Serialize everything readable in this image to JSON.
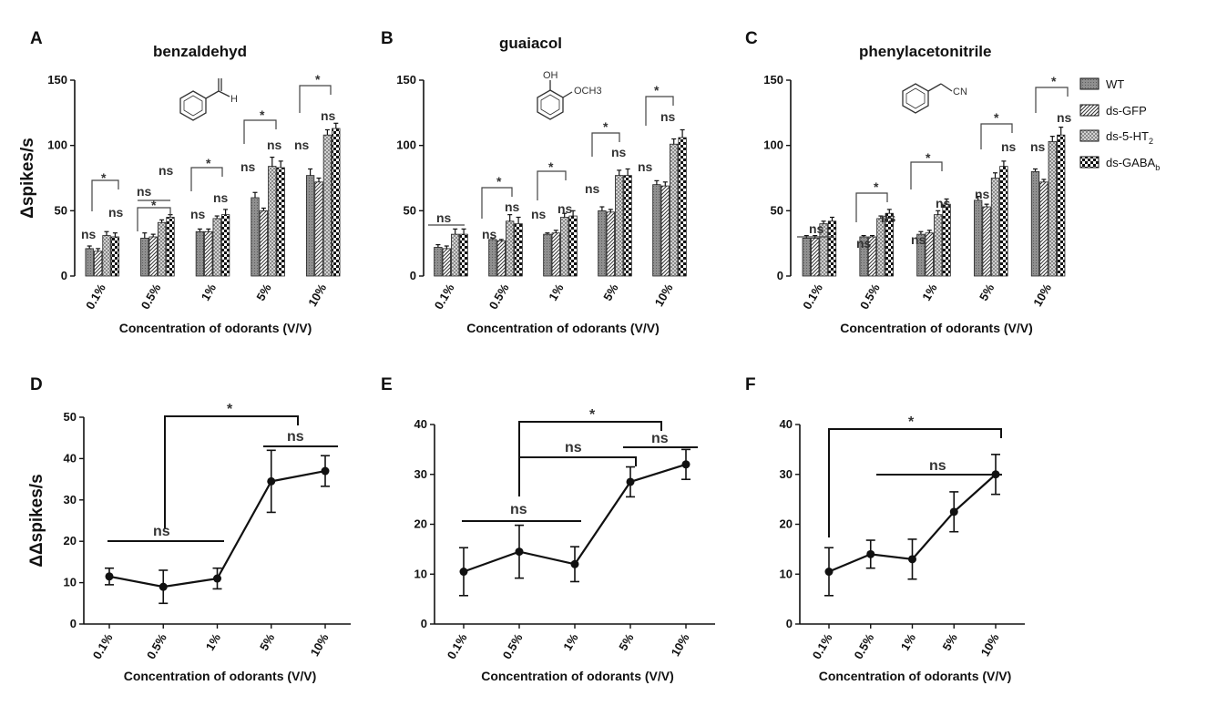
{
  "panel_letters": [
    "A",
    "B",
    "C",
    "D",
    "E",
    "F"
  ],
  "colors": {
    "ink": "#111111",
    "wt": "#8c8c8c",
    "gfp": "#ffffff",
    "ht2": "#b4b4b4",
    "gaba": "#2a2a2a"
  },
  "annotation_text": {
    "star": "*",
    "ns": "ns"
  },
  "legend": [
    {
      "key": "wt",
      "label": "WT"
    },
    {
      "key": "gfp",
      "label": "ds-GFP"
    },
    {
      "key": "ht2",
      "label": "ds-5-HT",
      "sub": "2"
    },
    {
      "key": "gaba",
      "label": "ds-GABA",
      "sub": "b"
    }
  ],
  "chem_labels": [
    "H",
    "OH",
    "OCH3",
    "CN"
  ],
  "chart_data": [
    {
      "type": "bar",
      "panel": "A",
      "title": "benzaldehyd",
      "categories": [
        "0.1%",
        "0.5%",
        "1%",
        "5%",
        "10%"
      ],
      "series": [
        {
          "name": "WT",
          "values": [
            21,
            29,
            34,
            60,
            77
          ],
          "errors": [
            2,
            4,
            2,
            4,
            5
          ]
        },
        {
          "name": "ds-GFP",
          "values": [
            19,
            30,
            34,
            50,
            72
          ],
          "errors": [
            2,
            2,
            2,
            2,
            3
          ]
        },
        {
          "name": "ds-5-HT2",
          "values": [
            31,
            41,
            44,
            84,
            108
          ],
          "errors": [
            3,
            2,
            2,
            7,
            4
          ]
        },
        {
          "name": "ds-GABAb",
          "values": [
            30,
            45,
            47,
            83,
            113
          ],
          "errors": [
            3,
            2,
            4,
            5,
            4
          ]
        }
      ],
      "xlabel": "Concentration of odorants (V/V)",
      "ylabel": "Δspikes/s",
      "ylim": [
        0,
        150
      ],
      "yticks": [
        0,
        50,
        100,
        150
      ]
    },
    {
      "type": "bar",
      "panel": "B",
      "title": "guaiacol",
      "categories": [
        "0.1%",
        "0.5%",
        "1%",
        "5%",
        "10%"
      ],
      "series": [
        {
          "name": "WT",
          "values": [
            22,
            28,
            32,
            50,
            70
          ],
          "errors": [
            2,
            1,
            1,
            3,
            3
          ]
        },
        {
          "name": "ds-GFP",
          "values": [
            21,
            27,
            33,
            49,
            69
          ],
          "errors": [
            2,
            1,
            2,
            2,
            3
          ]
        },
        {
          "name": "ds-5-HT2",
          "values": [
            32,
            42,
            45,
            77,
            101
          ],
          "errors": [
            4,
            5,
            3,
            4,
            4
          ]
        },
        {
          "name": "ds-GABAb",
          "values": [
            32,
            40,
            46,
            77,
            106
          ],
          "errors": [
            4,
            5,
            4,
            5,
            6
          ]
        }
      ],
      "xlabel": "Concentration of odorants (V/V)",
      "ylabel": "",
      "ylim": [
        0,
        150
      ],
      "yticks": [
        0,
        50,
        100,
        150
      ]
    },
    {
      "type": "bar",
      "panel": "C",
      "title": "phenylacetonitrile",
      "categories": [
        "0.1%",
        "0.5%",
        "1%",
        "5%",
        "10%"
      ],
      "series": [
        {
          "name": "WT",
          "values": [
            29,
            30,
            32,
            58,
            80
          ],
          "errors": [
            2,
            1,
            2,
            3,
            2
          ]
        },
        {
          "name": "ds-GFP",
          "values": [
            29,
            30,
            33,
            53,
            72
          ],
          "errors": [
            2,
            1,
            2,
            2,
            2
          ]
        },
        {
          "name": "ds-5-HT2",
          "values": [
            40,
            44,
            47,
            75,
            103
          ],
          "errors": [
            2,
            2,
            3,
            4,
            4
          ]
        },
        {
          "name": "ds-GABAb",
          "values": [
            42,
            48,
            55,
            84,
            108
          ],
          "errors": [
            3,
            3,
            4,
            4,
            6
          ]
        }
      ],
      "xlabel": "Concentration of odorants (V/V)",
      "ylabel": "",
      "ylim": [
        0,
        150
      ],
      "yticks": [
        0,
        50,
        100,
        150
      ]
    },
    {
      "type": "line",
      "panel": "D",
      "categories": [
        "0.1%",
        "0.5%",
        "1%",
        "5%",
        "10%"
      ],
      "values": [
        11.5,
        9,
        11,
        34.5,
        37
      ],
      "errors": [
        2,
        4,
        2.5,
        7.5,
        3.7
      ],
      "xlabel": "Concentration of odorants (V/V)",
      "ylabel": "ΔΔspikes/s",
      "ylim": [
        0,
        50
      ],
      "yticks": [
        0,
        10,
        20,
        30,
        40,
        50
      ]
    },
    {
      "type": "line",
      "panel": "E",
      "categories": [
        "0.1%",
        "0.5%",
        "1%",
        "5%",
        "10%"
      ],
      "values": [
        10.5,
        14.5,
        12,
        28.5,
        32
      ],
      "errors": [
        4.8,
        5.3,
        3.5,
        3,
        3
      ],
      "xlabel": "Concentration of odorants (V/V)",
      "ylabel": "",
      "ylim": [
        0,
        40
      ],
      "yticks": [
        0,
        10,
        20,
        30,
        40
      ]
    },
    {
      "type": "line",
      "panel": "F",
      "categories": [
        "0.1%",
        "0.5%",
        "1%",
        "5%",
        "10%"
      ],
      "values": [
        10.5,
        14,
        13,
        22.5,
        30
      ],
      "errors": [
        4.8,
        2.8,
        4,
        4,
        4
      ],
      "xlabel": "Concentration of odorants (V/V)",
      "ylabel": "",
      "ylim": [
        0,
        40
      ],
      "yticks": [
        0,
        10,
        20,
        30,
        40
      ],
      "ytick_labels": [
        "0",
        "10",
        "20",
        "30",
        "40"
      ]
    }
  ]
}
